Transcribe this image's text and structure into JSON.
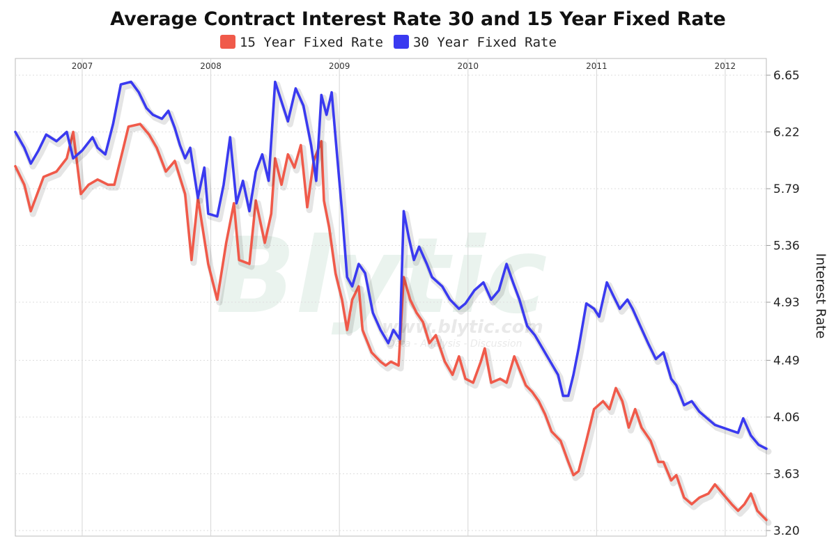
{
  "chart_data": {
    "type": "line",
    "title": "Average Contract Interest Rate 30 and 15 Year Fixed Rate",
    "ylabel": "Interest Rate",
    "xlabel": "",
    "ylim": [
      3.2,
      6.65
    ],
    "yticks": [
      "6.65",
      "6.22",
      "5.79",
      "5.36",
      "4.93",
      "4.49",
      "4.06",
      "3.63",
      "3.20"
    ],
    "xlim": [
      2006.48,
      2012.32
    ],
    "xticks": [
      {
        "label": "2007",
        "x": 2007.0
      },
      {
        "label": "2008",
        "x": 2008.0
      },
      {
        "label": "2009",
        "x": 2009.0
      },
      {
        "label": "2010",
        "x": 2010.0
      },
      {
        "label": "2011",
        "x": 2011.0
      },
      {
        "label": "2012",
        "x": 2012.0
      }
    ],
    "grid": true,
    "legend_position": "top-center",
    "series": [
      {
        "name": "15 Year Fixed Rate",
        "color": "#f05a4a",
        "points": [
          [
            2006.48,
            5.96
          ],
          [
            2006.55,
            5.82
          ],
          [
            2006.6,
            5.62
          ],
          [
            2006.7,
            5.88
          ],
          [
            2006.8,
            5.92
          ],
          [
            2006.88,
            6.02
          ],
          [
            2006.93,
            6.22
          ],
          [
            2006.99,
            5.75
          ],
          [
            2007.05,
            5.82
          ],
          [
            2007.12,
            5.86
          ],
          [
            2007.2,
            5.82
          ],
          [
            2007.25,
            5.82
          ],
          [
            2007.32,
            6.1
          ],
          [
            2007.36,
            6.26
          ],
          [
            2007.45,
            6.28
          ],
          [
            2007.52,
            6.2
          ],
          [
            2007.58,
            6.1
          ],
          [
            2007.65,
            5.92
          ],
          [
            2007.72,
            6.0
          ],
          [
            2007.8,
            5.75
          ],
          [
            2007.85,
            5.25
          ],
          [
            2007.9,
            5.72
          ],
          [
            2007.98,
            5.22
          ],
          [
            2008.05,
            4.95
          ],
          [
            2008.12,
            5.38
          ],
          [
            2008.18,
            5.68
          ],
          [
            2008.22,
            5.25
          ],
          [
            2008.3,
            5.22
          ],
          [
            2008.35,
            5.7
          ],
          [
            2008.42,
            5.38
          ],
          [
            2008.47,
            5.6
          ],
          [
            2008.5,
            6.02
          ],
          [
            2008.55,
            5.82
          ],
          [
            2008.6,
            6.05
          ],
          [
            2008.65,
            5.95
          ],
          [
            2008.7,
            6.12
          ],
          [
            2008.75,
            5.65
          ],
          [
            2008.8,
            6.0
          ],
          [
            2008.86,
            6.15
          ],
          [
            2008.88,
            5.7
          ],
          [
            2008.92,
            5.5
          ],
          [
            2008.97,
            5.15
          ],
          [
            2009.02,
            4.95
          ],
          [
            2009.06,
            4.72
          ],
          [
            2009.1,
            4.95
          ],
          [
            2009.15,
            5.05
          ],
          [
            2009.18,
            4.72
          ],
          [
            2009.25,
            4.55
          ],
          [
            2009.32,
            4.48
          ],
          [
            2009.36,
            4.45
          ],
          [
            2009.4,
            4.48
          ],
          [
            2009.46,
            4.45
          ],
          [
            2009.5,
            5.12
          ],
          [
            2009.55,
            4.95
          ],
          [
            2009.6,
            4.85
          ],
          [
            2009.65,
            4.78
          ],
          [
            2009.7,
            4.62
          ],
          [
            2009.75,
            4.68
          ],
          [
            2009.82,
            4.48
          ],
          [
            2009.88,
            4.38
          ],
          [
            2009.93,
            4.52
          ],
          [
            2009.98,
            4.35
          ],
          [
            2010.04,
            4.32
          ],
          [
            2010.1,
            4.48
          ],
          [
            2010.13,
            4.58
          ],
          [
            2010.18,
            4.32
          ],
          [
            2010.25,
            4.35
          ],
          [
            2010.3,
            4.32
          ],
          [
            2010.36,
            4.52
          ],
          [
            2010.4,
            4.42
          ],
          [
            2010.45,
            4.3
          ],
          [
            2010.5,
            4.25
          ],
          [
            2010.55,
            4.18
          ],
          [
            2010.6,
            4.08
          ],
          [
            2010.65,
            3.95
          ],
          [
            2010.72,
            3.88
          ],
          [
            2010.78,
            3.72
          ],
          [
            2010.82,
            3.62
          ],
          [
            2010.86,
            3.65
          ],
          [
            2010.92,
            3.88
          ],
          [
            2010.98,
            4.12
          ],
          [
            2011.05,
            4.18
          ],
          [
            2011.1,
            4.12
          ],
          [
            2011.15,
            4.28
          ],
          [
            2011.2,
            4.18
          ],
          [
            2011.25,
            3.98
          ],
          [
            2011.3,
            4.12
          ],
          [
            2011.35,
            3.98
          ],
          [
            2011.42,
            3.88
          ],
          [
            2011.48,
            3.72
          ],
          [
            2011.52,
            3.72
          ],
          [
            2011.58,
            3.58
          ],
          [
            2011.62,
            3.62
          ],
          [
            2011.68,
            3.45
          ],
          [
            2011.74,
            3.4
          ],
          [
            2011.8,
            3.45
          ],
          [
            2011.87,
            3.48
          ],
          [
            2011.92,
            3.55
          ],
          [
            2011.98,
            3.48
          ],
          [
            2012.05,
            3.4
          ],
          [
            2012.1,
            3.35
          ],
          [
            2012.15,
            3.4
          ],
          [
            2012.2,
            3.48
          ],
          [
            2012.25,
            3.35
          ],
          [
            2012.32,
            3.28
          ]
        ]
      },
      {
        "name": "30 Year Fixed Rate",
        "color": "#3a3af0",
        "points": [
          [
            2006.48,
            6.22
          ],
          [
            2006.55,
            6.1
          ],
          [
            2006.6,
            5.98
          ],
          [
            2006.66,
            6.08
          ],
          [
            2006.72,
            6.2
          ],
          [
            2006.8,
            6.15
          ],
          [
            2006.88,
            6.22
          ],
          [
            2006.93,
            6.02
          ],
          [
            2007.0,
            6.08
          ],
          [
            2007.08,
            6.18
          ],
          [
            2007.12,
            6.1
          ],
          [
            2007.18,
            6.05
          ],
          [
            2007.24,
            6.28
          ],
          [
            2007.3,
            6.58
          ],
          [
            2007.38,
            6.6
          ],
          [
            2007.44,
            6.52
          ],
          [
            2007.5,
            6.4
          ],
          [
            2007.55,
            6.35
          ],
          [
            2007.62,
            6.32
          ],
          [
            2007.67,
            6.38
          ],
          [
            2007.72,
            6.25
          ],
          [
            2007.76,
            6.12
          ],
          [
            2007.8,
            6.02
          ],
          [
            2007.84,
            6.1
          ],
          [
            2007.9,
            5.72
          ],
          [
            2007.95,
            5.95
          ],
          [
            2007.98,
            5.6
          ],
          [
            2008.05,
            5.58
          ],
          [
            2008.1,
            5.82
          ],
          [
            2008.15,
            6.18
          ],
          [
            2008.2,
            5.68
          ],
          [
            2008.25,
            5.85
          ],
          [
            2008.3,
            5.62
          ],
          [
            2008.35,
            5.92
          ],
          [
            2008.4,
            6.05
          ],
          [
            2008.45,
            5.85
          ],
          [
            2008.5,
            6.6
          ],
          [
            2008.55,
            6.45
          ],
          [
            2008.6,
            6.3
          ],
          [
            2008.66,
            6.55
          ],
          [
            2008.72,
            6.42
          ],
          [
            2008.78,
            6.12
          ],
          [
            2008.82,
            5.85
          ],
          [
            2008.86,
            6.5
          ],
          [
            2008.9,
            6.35
          ],
          [
            2008.94,
            6.52
          ],
          [
            2008.97,
            6.18
          ],
          [
            2009.02,
            5.62
          ],
          [
            2009.06,
            5.12
          ],
          [
            2009.1,
            5.05
          ],
          [
            2009.15,
            5.22
          ],
          [
            2009.2,
            5.15
          ],
          [
            2009.26,
            4.85
          ],
          [
            2009.32,
            4.72
          ],
          [
            2009.38,
            4.62
          ],
          [
            2009.42,
            4.72
          ],
          [
            2009.47,
            4.65
          ],
          [
            2009.5,
            5.62
          ],
          [
            2009.54,
            5.42
          ],
          [
            2009.58,
            5.25
          ],
          [
            2009.62,
            5.35
          ],
          [
            2009.68,
            5.22
          ],
          [
            2009.72,
            5.12
          ],
          [
            2009.8,
            5.05
          ],
          [
            2009.86,
            4.95
          ],
          [
            2009.93,
            4.88
          ],
          [
            2009.98,
            4.92
          ],
          [
            2010.05,
            5.02
          ],
          [
            2010.12,
            5.08
          ],
          [
            2010.18,
            4.95
          ],
          [
            2010.24,
            5.02
          ],
          [
            2010.3,
            5.22
          ],
          [
            2010.35,
            5.08
          ],
          [
            2010.4,
            4.95
          ],
          [
            2010.46,
            4.75
          ],
          [
            2010.52,
            4.68
          ],
          [
            2010.58,
            4.58
          ],
          [
            2010.64,
            4.48
          ],
          [
            2010.7,
            4.38
          ],
          [
            2010.74,
            4.22
          ],
          [
            2010.78,
            4.22
          ],
          [
            2010.82,
            4.38
          ],
          [
            2010.86,
            4.58
          ],
          [
            2010.92,
            4.92
          ],
          [
            2010.98,
            4.88
          ],
          [
            2011.02,
            4.82
          ],
          [
            2011.08,
            5.08
          ],
          [
            2011.13,
            4.98
          ],
          [
            2011.18,
            4.88
          ],
          [
            2011.24,
            4.95
          ],
          [
            2011.28,
            4.88
          ],
          [
            2011.34,
            4.75
          ],
          [
            2011.4,
            4.62
          ],
          [
            2011.46,
            4.5
          ],
          [
            2011.52,
            4.55
          ],
          [
            2011.58,
            4.35
          ],
          [
            2011.62,
            4.3
          ],
          [
            2011.68,
            4.15
          ],
          [
            2011.74,
            4.18
          ],
          [
            2011.8,
            4.1
          ],
          [
            2011.86,
            4.05
          ],
          [
            2011.92,
            4.0
          ],
          [
            2011.98,
            3.98
          ],
          [
            2012.04,
            3.96
          ],
          [
            2012.1,
            3.94
          ],
          [
            2012.14,
            4.05
          ],
          [
            2012.2,
            3.92
          ],
          [
            2012.26,
            3.85
          ],
          [
            2012.32,
            3.82
          ]
        ]
      }
    ]
  }
}
